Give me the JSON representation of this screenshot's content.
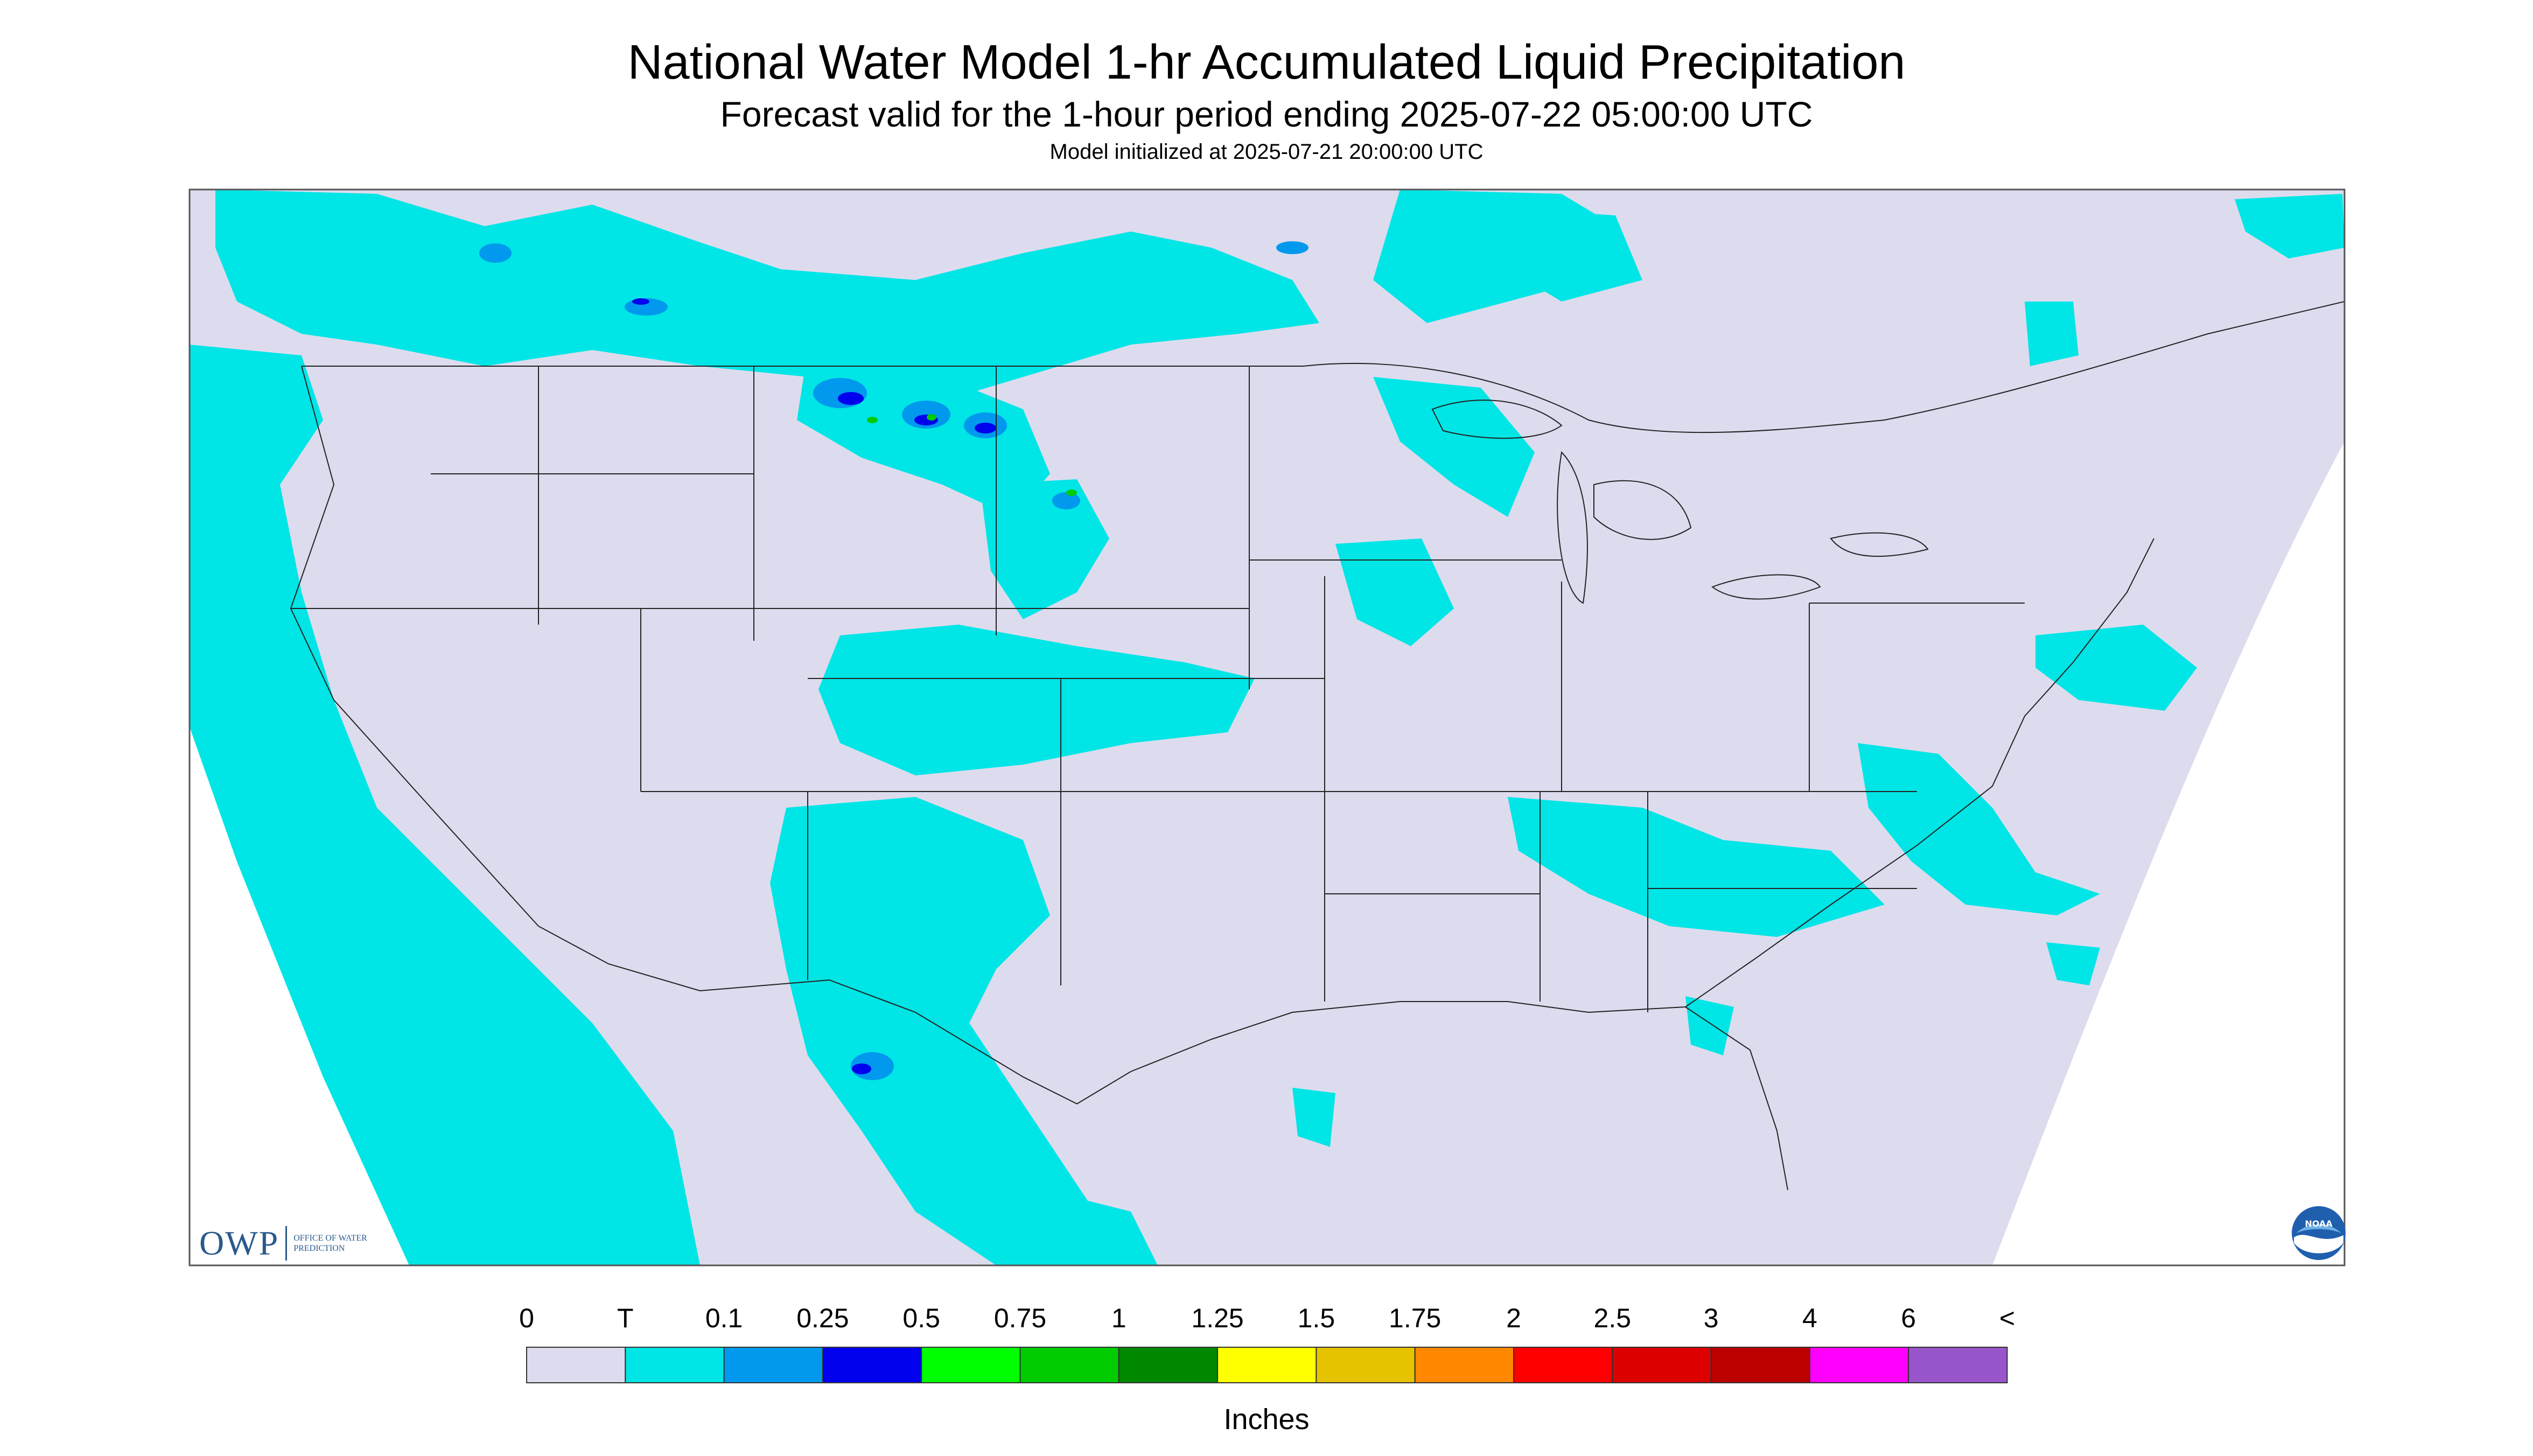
{
  "header": {
    "title": "National Water Model 1-hr Accumulated Liquid Precipitation",
    "subtitle": "Forecast valid for the 1-hour period ending 2025-07-22 05:00:00 UTC",
    "init_line": "Model initialized at 2025-07-21 20:00:00 UTC"
  },
  "map": {
    "background_color": "#dcdcee",
    "outside_color": "#ffffff",
    "trace_color": "#00e5e5",
    "boundary_color": "#222222"
  },
  "legend": {
    "units_label": "Inches",
    "tick_labels": [
      "0",
      "T",
      "0.1",
      "0.25",
      "0.5",
      "0.75",
      "1",
      "1.25",
      "1.5",
      "1.75",
      "2",
      "2.5",
      "3",
      "4",
      "6",
      "<"
    ],
    "colors": [
      "#dcdcee",
      "#00e5e5",
      "#0099ee",
      "#0000ee",
      "#00ff00",
      "#00cc00",
      "#008800",
      "#ffff00",
      "#e6c300",
      "#ff8800",
      "#ff0000",
      "#dd0000",
      "#bb0000",
      "#ff00ff",
      "#9955cc"
    ]
  },
  "logos": {
    "owp_mark": "OWP",
    "owp_name": "OFFICE OF WATER PREDICTION",
    "noaa_text": "NOAA"
  }
}
